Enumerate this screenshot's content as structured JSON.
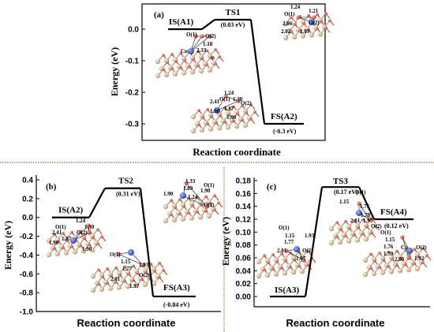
{
  "chart_data": [
    {
      "panel": "(a)",
      "type": "line",
      "ylabel": "Energy (eV)",
      "xlabel": "Reaction coordinate",
      "ylim": [
        -0.35,
        0.08
      ],
      "yticks": [
        "0.0",
        "-0.1",
        "-0.2",
        "-0.3"
      ],
      "ytick_values": [
        0.0,
        -0.1,
        -0.2,
        -0.3
      ],
      "states": [
        {
          "name": "IS(A1)",
          "energy": 0.0,
          "energy_label": ""
        },
        {
          "name": "TS1",
          "energy": 0.03,
          "energy_label": "(0.03 eV)"
        },
        {
          "name": "FS(A2)",
          "energy": -0.3,
          "energy_label": "(-0.3 eV)"
        }
      ],
      "annotations": [
        {
          "text": "O(1)",
          "group": "is"
        },
        {
          "text": "O(2)",
          "group": "is"
        },
        {
          "text": "1.18",
          "group": "is"
        },
        {
          "text": "Cu",
          "group": "is"
        },
        {
          "text": "2.33",
          "group": "is"
        },
        {
          "text": "n",
          "group": "is"
        },
        {
          "text": "1.24",
          "group": "ts"
        },
        {
          "text": "1.21",
          "group": "ts"
        },
        {
          "text": "O(1)",
          "group": "ts"
        },
        {
          "text": "2.06",
          "group": "ts"
        },
        {
          "text": "O(2)",
          "group": "ts"
        },
        {
          "text": "2.02",
          "group": "ts"
        },
        {
          "text": "2.03",
          "group": "ts"
        },
        {
          "text": "1.24",
          "group": "fs"
        },
        {
          "text": "O(1)",
          "group": "fs"
        },
        {
          "text": "1.30",
          "group": "fs"
        },
        {
          "text": "2.41",
          "group": "fs"
        },
        {
          "text": "O(2)",
          "group": "fs"
        },
        {
          "text": "1.87",
          "group": "fs"
        },
        {
          "text": "1.90",
          "group": "fs"
        },
        {
          "text": "1.90",
          "group": "fs"
        }
      ]
    },
    {
      "panel": "(b)",
      "type": "line",
      "ylabel": "Energy (eV)",
      "xlabel": "Reaction coordinate",
      "ylim": [
        -1.0,
        0.4
      ],
      "yticks": [
        "0.4",
        "0.2",
        "0.0",
        "-0.2",
        "-0.4",
        "-0.6",
        "-0.8",
        "-1.0"
      ],
      "ytick_values": [
        0.4,
        0.2,
        0.0,
        -0.2,
        -0.4,
        -0.6,
        -0.8,
        -1.0
      ],
      "states": [
        {
          "name": "IS(A2)",
          "energy": 0.0,
          "energy_label": ""
        },
        {
          "name": "TS2",
          "energy": 0.31,
          "energy_label": "(0.31 eV)"
        },
        {
          "name": "FS(A3)",
          "energy": -0.84,
          "energy_label": "(-0.84 eV)"
        }
      ],
      "annotations": [
        {
          "text": "1.24",
          "group": "is"
        },
        {
          "text": "O(1)",
          "group": "is"
        },
        {
          "text": "1.30",
          "group": "is"
        },
        {
          "text": "2.41",
          "group": "is"
        },
        {
          "text": "O(2)",
          "group": "is"
        },
        {
          "text": "1.87",
          "group": "is"
        },
        {
          "text": "1.90",
          "group": "is"
        },
        {
          "text": "1.90",
          "group": "is"
        },
        {
          "text": "1.33",
          "group": "ts"
        },
        {
          "text": "1.89",
          "group": "ts"
        },
        {
          "text": "O(1)",
          "group": "ts"
        },
        {
          "text": "1.90",
          "group": "ts"
        },
        {
          "text": "1.90",
          "group": "ts"
        },
        {
          "text": "1.24",
          "group": "ts"
        },
        {
          "text": "O(2)",
          "group": "ts"
        },
        {
          "text": "O(1)",
          "group": "fs"
        },
        {
          "text": "1.15",
          "group": "fs"
        },
        {
          "text": "1.93",
          "group": "fs"
        },
        {
          "text": "1.77",
          "group": "fs"
        },
        {
          "text": "2.01",
          "group": "fs"
        },
        {
          "text": "O(2)",
          "group": "fs"
        },
        {
          "text": "1.97",
          "group": "fs"
        }
      ]
    },
    {
      "panel": "(c)",
      "type": "line",
      "ylabel": "Energy (eV)",
      "xlabel": "Reaction coordinate",
      "ylim": [
        -0.01,
        0.18
      ],
      "yticks": [
        "0.18",
        "0.16",
        "0.14",
        "0.12",
        "0.10",
        "0.08",
        "0.06",
        "0.04",
        "0.02",
        "0.00"
      ],
      "ytick_values": [
        0.18,
        0.16,
        0.14,
        0.12,
        0.1,
        0.08,
        0.06,
        0.04,
        0.02,
        0.0
      ],
      "states": [
        {
          "name": "IS(A3)",
          "energy": 0.0,
          "energy_label": ""
        },
        {
          "name": "TS3",
          "energy": 0.17,
          "energy_label": "(0.17 eV)"
        },
        {
          "name": "FS(A4)",
          "energy": 0.12,
          "energy_label": "(0.12 eV)"
        }
      ],
      "annotations": [
        {
          "text": "O(1)",
          "group": "is"
        },
        {
          "text": "1.15",
          "group": "is"
        },
        {
          "text": "1.93",
          "group": "is"
        },
        {
          "text": "1.77",
          "group": "is"
        },
        {
          "text": "2.01",
          "group": "is"
        },
        {
          "text": "O(2)",
          "group": "is"
        },
        {
          "text": "1.97",
          "group": "is"
        },
        {
          "text": "O(1)",
          "group": "ts"
        },
        {
          "text": "1.15",
          "group": "ts"
        },
        {
          "text": "1.75",
          "group": "ts"
        },
        {
          "text": "1.78",
          "group": "ts"
        },
        {
          "text": "2.01",
          "group": "ts"
        },
        {
          "text": "1.95",
          "group": "ts"
        },
        {
          "text": "O(2)",
          "group": "ts"
        },
        {
          "text": "O(1)",
          "group": "fs"
        },
        {
          "text": "1.15",
          "group": "fs"
        },
        {
          "text": "Cu",
          "group": "fs"
        },
        {
          "text": "1.76",
          "group": "fs"
        },
        {
          "text": "O(2)",
          "group": "fs"
        },
        {
          "text": "1.79",
          "group": "fs"
        },
        {
          "text": "2.00",
          "group": "fs"
        },
        {
          "text": "1.92",
          "group": "fs"
        }
      ]
    }
  ],
  "colors": {
    "axis": "#000000",
    "cu_atom": "#3a5fcd",
    "oxygen_atom": "#d9534f",
    "cerium_atom": "#e8c9a8",
    "lattice_green": "#7aa07a",
    "lattice_red": "#c0392b",
    "separator": "#7a3f00"
  }
}
